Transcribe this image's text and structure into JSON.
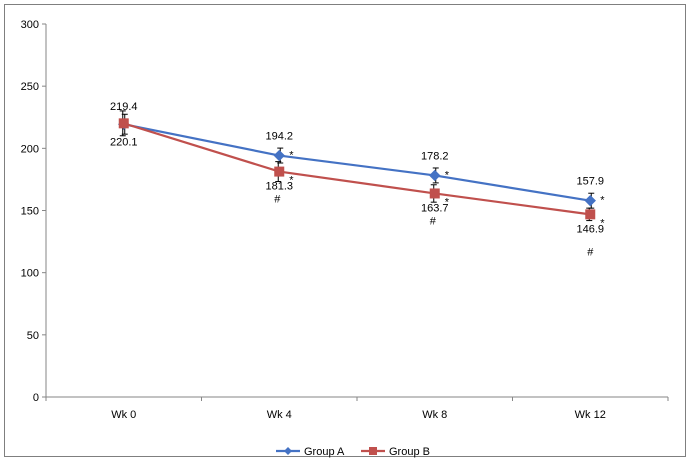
{
  "chart_data": {
    "type": "line",
    "title": "",
    "xlabel": "",
    "ylabel": "",
    "categories": [
      "Wk 0",
      "Wk 4",
      "Wk 8",
      "Wk 12"
    ],
    "ylim": [
      0,
      300
    ],
    "yticks": [
      0,
      50,
      100,
      150,
      200,
      250,
      300
    ],
    "grid": false,
    "legend": "bottom",
    "series": [
      {
        "name": "Group A",
        "color": "#4472c4",
        "marker": "diamond",
        "values": [
          219.4,
          194.2,
          178.2,
          157.9
        ],
        "error": [
          8,
          6,
          6,
          6
        ],
        "labels": [
          "219.4",
          "194.2",
          "178.2",
          "157.9"
        ],
        "sig_markers": [
          "",
          "*",
          "*",
          "*"
        ]
      },
      {
        "name": "Group B",
        "color": "#c0504d",
        "marker": "square",
        "values": [
          220.1,
          181.3,
          163.7,
          146.9
        ],
        "error": [
          10,
          8,
          7,
          5
        ],
        "labels": [
          "220.1",
          "181.3",
          "163.7",
          "146.9"
        ],
        "sig_markers": [
          "",
          "*",
          "*",
          "*"
        ],
        "hash_markers": [
          "",
          "#",
          "#",
          "#"
        ]
      }
    ]
  }
}
